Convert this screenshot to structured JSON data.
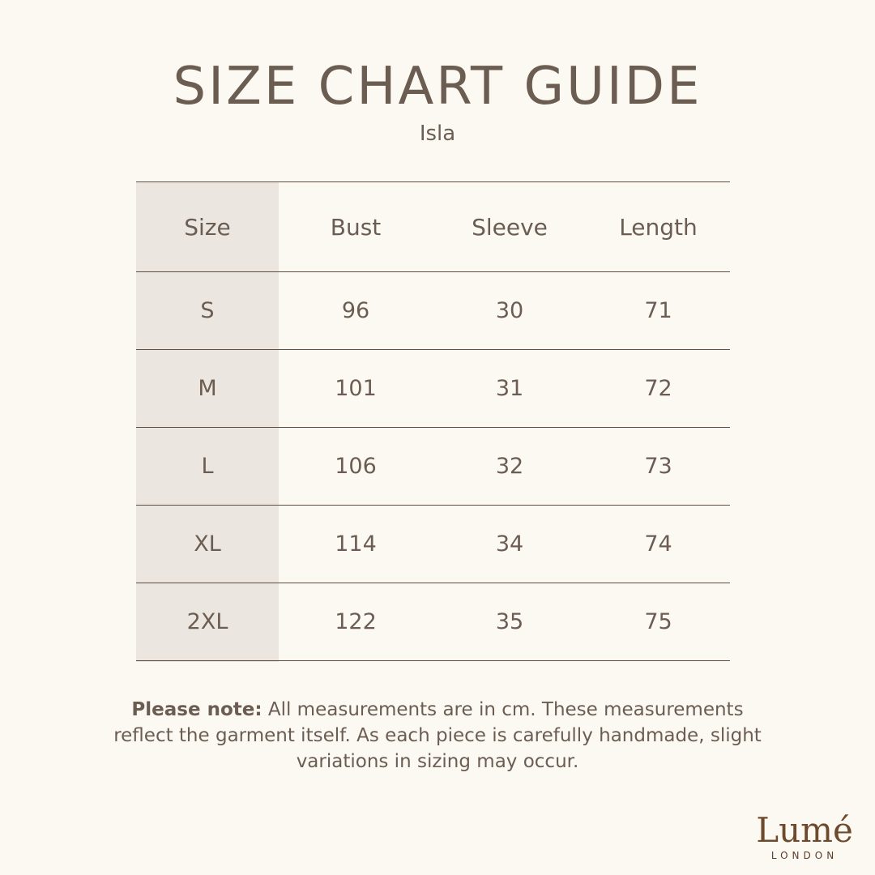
{
  "header": {
    "title": "SIZE CHART GUIDE",
    "subtitle": "Isla"
  },
  "table": {
    "columns": [
      "Size",
      "Bust",
      "Sleeve",
      "Length"
    ],
    "rows": [
      [
        "S",
        "96",
        "30",
        "71"
      ],
      [
        "M",
        "101",
        "31",
        "72"
      ],
      [
        "L",
        "106",
        "32",
        "73"
      ],
      [
        "XL",
        "114",
        "34",
        "74"
      ],
      [
        "2XL",
        "122",
        "35",
        "75"
      ]
    ]
  },
  "note": {
    "label": "Please note:",
    "text": " All measurements are in cm. These measurements reflect the garment itself. As each piece is carefully handmade, slight variations in sizing may occur."
  },
  "logo": {
    "name": "Lumé",
    "sub": "LONDON"
  },
  "colors": {
    "background": "#fcf9f3",
    "text": "#6b5d52",
    "size_column": "#ebe6e0",
    "logo": "#6e4a2c"
  }
}
